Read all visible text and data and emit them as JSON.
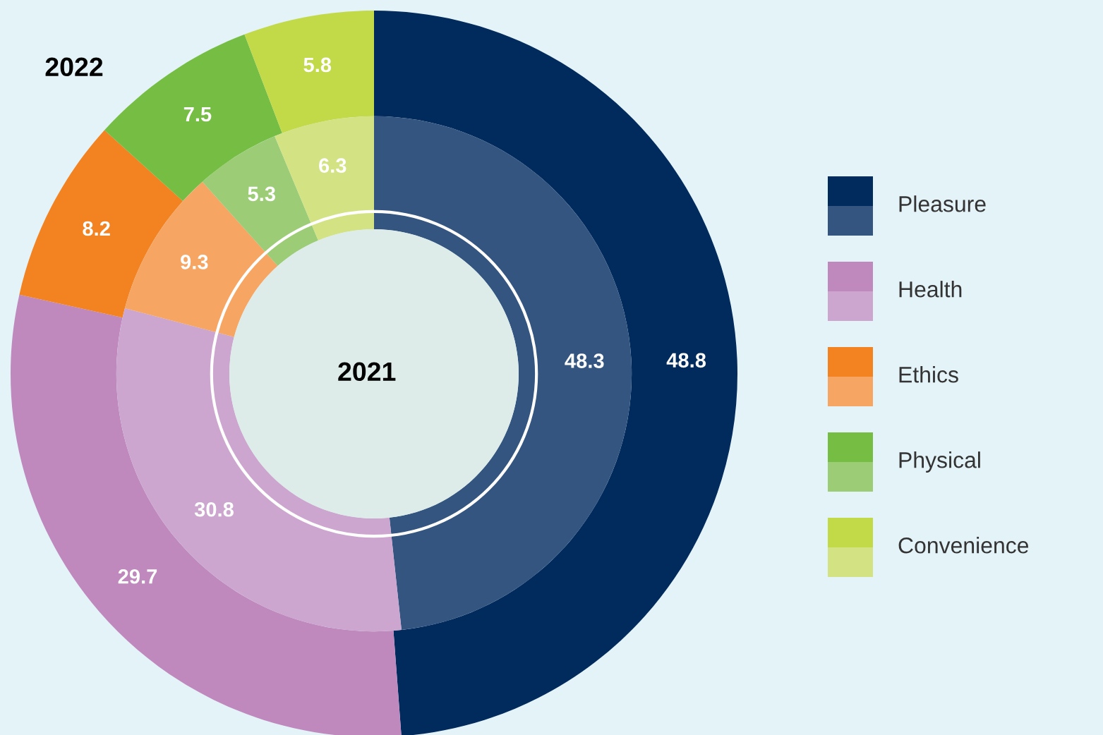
{
  "chart_data": {
    "type": "donut",
    "categories": [
      "Pleasure",
      "Health",
      "Ethics",
      "Physical",
      "Convenience"
    ],
    "data_labels": true,
    "legend": "right",
    "series": [
      {
        "name": "2022",
        "values": [
          48.8,
          29.7,
          8.2,
          7.5,
          5.8
        ],
        "colors": [
          "#002b5c",
          "#bf89bd",
          "#f38221",
          "#75be43",
          "#c2d948"
        ]
      },
      {
        "name": "2021",
        "values": [
          48.3,
          30.8,
          9.3,
          5.3,
          6.3
        ],
        "colors": [
          "#34557f",
          "#cda6cf",
          "#f7a563",
          "#9ccd76",
          "#d3e283"
        ]
      }
    ]
  }
}
